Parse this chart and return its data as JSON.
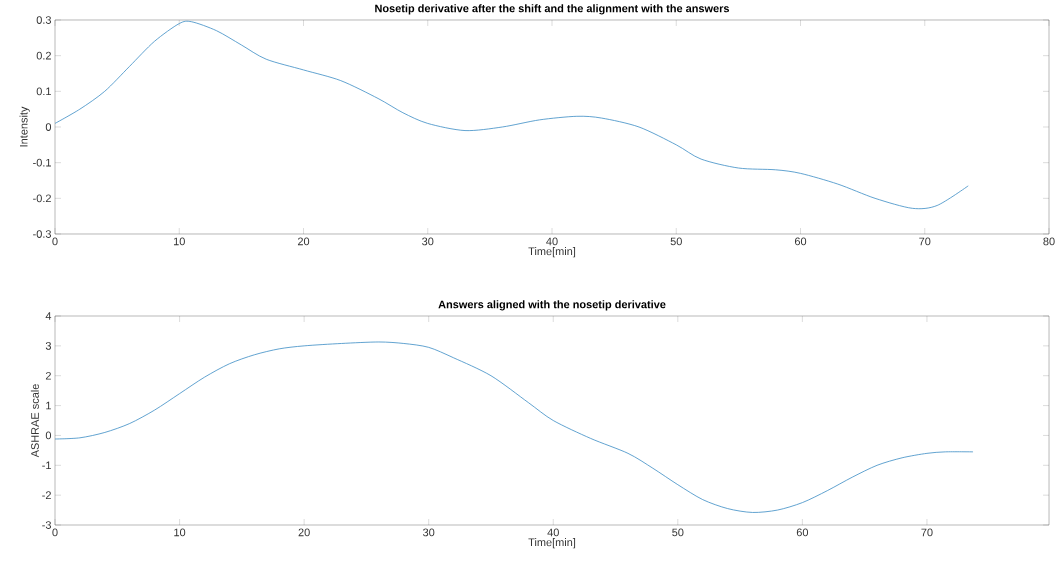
{
  "chart_data": [
    {
      "type": "line",
      "title": "Nosetip derivative after the shift and the alignment with the answers",
      "xlabel": "Time[min]",
      "ylabel": "Intensity",
      "xlim": [
        0,
        80
      ],
      "ylim": [
        -0.3,
        0.3
      ],
      "xticks": [
        0,
        10,
        20,
        30,
        40,
        50,
        60,
        70,
        80
      ],
      "yticks": [
        -0.3,
        -0.2,
        -0.1,
        0,
        0.1,
        0.2,
        0.3
      ],
      "grid": false,
      "marker": "none",
      "line_style": "solid",
      "series": [
        {
          "color": "#3a8cc4",
          "x": [
            0,
            2,
            4,
            6,
            8,
            10,
            11,
            13,
            15,
            17,
            20,
            23,
            26,
            28,
            30,
            33,
            36,
            39,
            42,
            44,
            47,
            50,
            52,
            55,
            58,
            60,
            63,
            66,
            69,
            71,
            73.5
          ],
          "values": [
            0.01,
            0.05,
            0.1,
            0.17,
            0.24,
            0.29,
            0.295,
            0.27,
            0.23,
            0.19,
            0.16,
            0.13,
            0.08,
            0.04,
            0.01,
            -0.01,
            0.0,
            0.02,
            0.03,
            0.025,
            0.0,
            -0.05,
            -0.09,
            -0.115,
            -0.12,
            -0.13,
            -0.16,
            -0.2,
            -0.228,
            -0.22,
            -0.165
          ]
        }
      ]
    },
    {
      "type": "line",
      "title": "Answers aligned with the nosetip derivative",
      "xlabel": "Time[min]",
      "ylabel": "ASHRAE scale",
      "xlim": [
        0,
        79.8
      ],
      "ylim": [
        -3,
        4
      ],
      "xticks": [
        0,
        10,
        20,
        30,
        40,
        50,
        60,
        70
      ],
      "yticks": [
        -3,
        -2,
        -1,
        0,
        1,
        2,
        3,
        4
      ],
      "grid": false,
      "marker": "none",
      "line_style": "solid",
      "series": [
        {
          "color": "#3a8cc4",
          "x": [
            0,
            2,
            4,
            6,
            8,
            10,
            12,
            14,
            16,
            18,
            20,
            23,
            26,
            28,
            30,
            32,
            35,
            38,
            40,
            43,
            46,
            48,
            50,
            52,
            54,
            56,
            58,
            60,
            62,
            64,
            66,
            68,
            70,
            71.5,
            73.7
          ],
          "values": [
            -0.12,
            -0.08,
            0.1,
            0.4,
            0.85,
            1.4,
            1.95,
            2.4,
            2.7,
            2.9,
            3.0,
            3.08,
            3.13,
            3.08,
            2.95,
            2.6,
            2.0,
            1.1,
            0.5,
            -0.1,
            -0.6,
            -1.1,
            -1.65,
            -2.15,
            -2.45,
            -2.58,
            -2.5,
            -2.25,
            -1.85,
            -1.4,
            -1.0,
            -0.75,
            -0.6,
            -0.55,
            -0.55
          ]
        }
      ]
    }
  ]
}
